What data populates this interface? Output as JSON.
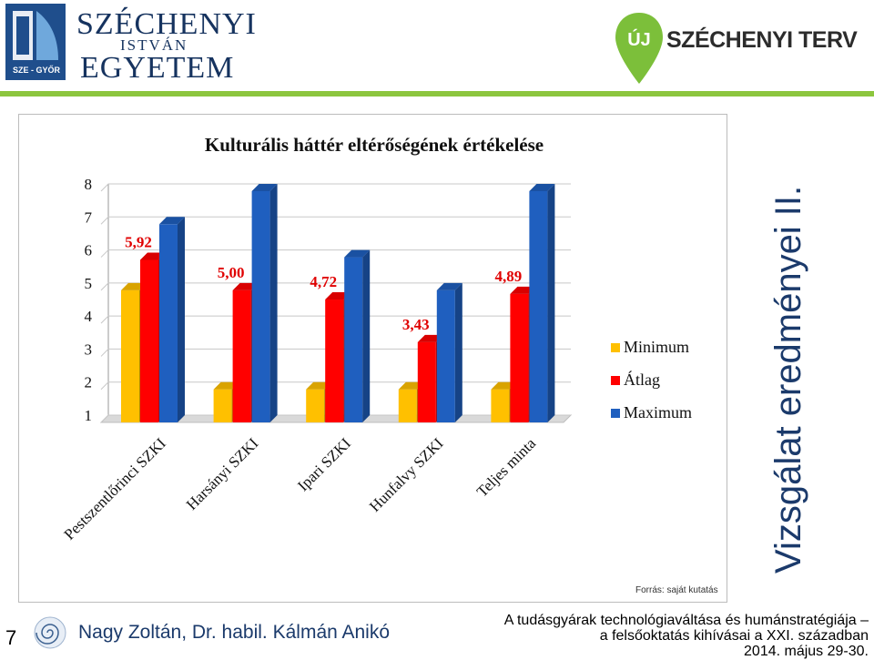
{
  "header": {
    "university": {
      "line1": "SZÉCHENYI",
      "line2": "ISTVÁN",
      "line3": "EGYETEM",
      "badge": "SZE - GYŐR"
    },
    "program_logo": {
      "uj": "ÚJ",
      "name": "SZÉCHENYI TERV"
    },
    "accent_color": "#8cc63e"
  },
  "slide": {
    "side_title": "Vizsgálat eredményei II.",
    "page_number": "7",
    "author": "Nagy Zoltán, Dr. habil. Kálmán Anikó",
    "footer_lines": [
      "A tudásgyárak technológiaváltása és humánstratégiája –",
      "a felsőoktatás kihívásai a XXI. században",
      "2014. május 29-30."
    ],
    "source": "Forrás: saját kutatás"
  },
  "chart_data": {
    "type": "bar",
    "title": "Kulturális háttér eltérőségének értékelése",
    "categories": [
      "Pestszentlőrinci SZKI",
      "Harsányi SZKI",
      "Ipari SZKI",
      "Hunfalvy SZKI",
      "Teljes minta"
    ],
    "series": [
      {
        "name": "Minimum",
        "color": "#ffc000",
        "values": [
          5,
          2,
          2,
          2,
          2
        ]
      },
      {
        "name": "Átlag",
        "color": "#ff0000",
        "values": [
          5.92,
          5.0,
          4.72,
          3.43,
          4.89
        ]
      },
      {
        "name": "Maximum",
        "color": "#1f5fbf",
        "values": [
          7,
          8,
          6,
          5,
          8
        ]
      }
    ],
    "data_labels": {
      "series": "Átlag",
      "labels": [
        "5,92",
        "5,00",
        "4,72",
        "3,43",
        "4,89"
      ]
    },
    "yticks": [
      "1",
      "2",
      "3",
      "4",
      "5",
      "6",
      "7",
      "8"
    ],
    "ylim": [
      1,
      8
    ],
    "grid": true,
    "legend_position": "right"
  }
}
